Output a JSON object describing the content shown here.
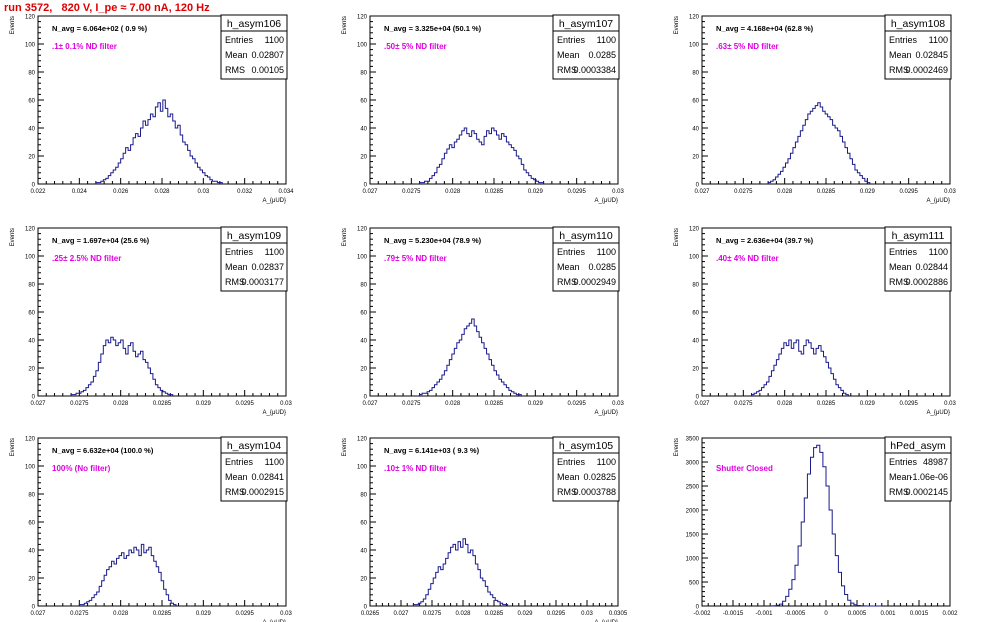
{
  "run_title": "run 3572,   820 V, I_pe ≈ 7.00 nA, 120 Hz",
  "colors": {
    "title": "#e00000",
    "annotation": "#e000e0",
    "histogram": "#1a1a8c",
    "frame": "#000000"
  },
  "chart_data": [
    {
      "type": "histogram",
      "name": "h_asym106",
      "stats": {
        "Entries": "1100",
        "Mean": "0.02807",
        "RMS": "0.00105"
      },
      "navg_label": "N_avg = 6.064e+02 ( 0.9 %)",
      "annotation": ".1± 0.1% ND filter",
      "xlim": [
        0.022,
        0.034
      ],
      "ylim": [
        0,
        120
      ],
      "xticks": [
        0.022,
        0.024,
        0.026,
        0.028,
        0.03,
        0.032,
        0.034
      ],
      "xtick_labels": [
        "0.022",
        "0.024",
        "0.026",
        "0.028",
        "0.03",
        "0.032",
        "0.034"
      ],
      "yticks": [
        0,
        20,
        40,
        60,
        80,
        100,
        120
      ],
      "ytick_labels": [
        "0",
        "20",
        "40",
        "60",
        "80",
        "100",
        "120"
      ],
      "xlabel": "A_{μUD}",
      "ylabel": "Events",
      "bins": {
        "start": 0.0248,
        "width": 0.00012,
        "values": [
          1,
          1,
          2,
          3,
          4,
          6,
          8,
          10,
          12,
          15,
          18,
          22,
          26,
          24,
          28,
          33,
          36,
          34,
          40,
          45,
          42,
          46,
          50,
          48,
          55,
          58,
          52,
          60,
          54,
          48,
          50,
          45,
          40,
          42,
          35,
          30,
          28,
          24,
          20,
          18,
          15,
          12,
          10,
          8,
          6,
          5,
          3,
          2,
          2,
          1,
          1
        ]
      }
    },
    {
      "type": "histogram",
      "name": "h_asym107",
      "stats": {
        "Entries": "1100",
        "Mean": "0.0285",
        "RMS": "0.0003384"
      },
      "navg_label": "N_avg = 3.325e+04 (50.1 %)",
      "annotation": ".50± 5% ND filter",
      "xlim": [
        0.027,
        0.03
      ],
      "ylim": [
        0,
        120
      ],
      "xticks": [
        0.027,
        0.0275,
        0.028,
        0.0285,
        0.029,
        0.0295,
        0.03
      ],
      "xtick_labels": [
        "0.027",
        "0.0275",
        "0.028",
        "0.0285",
        "0.029",
        "0.0295",
        "0.03"
      ],
      "yticks": [
        0,
        20,
        40,
        60,
        80,
        100,
        120
      ],
      "ytick_labels": [
        "0",
        "20",
        "40",
        "60",
        "80",
        "100",
        "120"
      ],
      "xlabel": "A_{μUD}",
      "ylabel": "Events",
      "bins": {
        "start": 0.0276,
        "width": 3e-05,
        "values": [
          1,
          1,
          2,
          2,
          4,
          6,
          8,
          12,
          14,
          18,
          22,
          25,
          28,
          26,
          30,
          32,
          35,
          38,
          40,
          36,
          34,
          38,
          36,
          32,
          30,
          28,
          34,
          38,
          36,
          40,
          38,
          35,
          32,
          36,
          34,
          30,
          28,
          26,
          24,
          20,
          18,
          14,
          10,
          8,
          6,
          4,
          3,
          2,
          1,
          1
        ]
      }
    },
    {
      "type": "histogram",
      "name": "h_asym108",
      "stats": {
        "Entries": "1100",
        "Mean": "0.02845",
        "RMS": "0.0002469"
      },
      "navg_label": "N_avg = 4.168e+04 (62.8 %)",
      "annotation": ".63± 5% ND filter",
      "xlim": [
        0.027,
        0.03
      ],
      "ylim": [
        0,
        120
      ],
      "xticks": [
        0.027,
        0.0275,
        0.028,
        0.0285,
        0.029,
        0.0295,
        0.03
      ],
      "xtick_labels": [
        "0.027",
        "0.0275",
        "0.028",
        "0.0285",
        "0.029",
        "0.0295",
        "0.03"
      ],
      "yticks": [
        0,
        20,
        40,
        60,
        80,
        100,
        120
      ],
      "ytick_labels": [
        "0",
        "20",
        "40",
        "60",
        "80",
        "100",
        "120"
      ],
      "xlabel": "A_{μUD}",
      "ylabel": "Events",
      "bins": {
        "start": 0.0278,
        "width": 3e-05,
        "values": [
          1,
          2,
          3,
          5,
          7,
          9,
          12,
          15,
          18,
          22,
          26,
          30,
          34,
          38,
          42,
          46,
          50,
          52,
          54,
          56,
          58,
          55,
          52,
          50,
          48,
          46,
          42,
          40,
          38,
          34,
          30,
          26,
          22,
          18,
          14,
          10,
          8,
          6,
          4,
          2,
          1
        ]
      }
    },
    {
      "type": "histogram",
      "name": "h_asym109",
      "stats": {
        "Entries": "1100",
        "Mean": "0.02837",
        "RMS": "0.0003177"
      },
      "navg_label": "N_avg = 1.697e+04 (25.6 %)",
      "annotation": ".25± 2.5% ND filter",
      "xlim": [
        0.027,
        0.03
      ],
      "ylim": [
        0,
        120
      ],
      "xticks": [
        0.027,
        0.0275,
        0.028,
        0.0285,
        0.029,
        0.0295,
        0.03
      ],
      "xtick_labels": [
        "0.027",
        "0.0275",
        "0.028",
        "0.0285",
        "0.029",
        "0.0295",
        "0.03"
      ],
      "yticks": [
        0,
        20,
        40,
        60,
        80,
        100,
        120
      ],
      "ytick_labels": [
        "0",
        "20",
        "40",
        "60",
        "80",
        "100",
        "120"
      ],
      "xlabel": "A_{μUD}",
      "ylabel": "Events",
      "bins": {
        "start": 0.0274,
        "width": 3e-05,
        "values": [
          1,
          1,
          2,
          2,
          3,
          4,
          6,
          8,
          10,
          14,
          18,
          24,
          30,
          36,
          40,
          38,
          42,
          40,
          36,
          38,
          40,
          34,
          30,
          36,
          38,
          32,
          28,
          30,
          32,
          26,
          24,
          20,
          16,
          12,
          8,
          6,
          4,
          3,
          2,
          1,
          1
        ]
      }
    },
    {
      "type": "histogram",
      "name": "h_asym110",
      "stats": {
        "Entries": "1100",
        "Mean": "0.0285",
        "RMS": "0.0002949"
      },
      "navg_label": "N_avg = 5.230e+04 (78.9 %)",
      "annotation": ".79± 5% ND filter",
      "xlim": [
        0.027,
        0.03
      ],
      "ylim": [
        0,
        120
      ],
      "xticks": [
        0.027,
        0.0275,
        0.028,
        0.0285,
        0.029,
        0.0295,
        0.03
      ],
      "xtick_labels": [
        "0.027",
        "0.0275",
        "0.028",
        "0.0285",
        "0.029",
        "0.0295",
        "0.03"
      ],
      "yticks": [
        0,
        20,
        40,
        60,
        80,
        100,
        120
      ],
      "ytick_labels": [
        "0",
        "20",
        "40",
        "60",
        "80",
        "100",
        "120"
      ],
      "xlabel": "A_{μUD}",
      "ylabel": "Events",
      "bins": {
        "start": 0.0276,
        "width": 3e-05,
        "values": [
          1,
          2,
          2,
          3,
          4,
          6,
          8,
          10,
          12,
          15,
          18,
          22,
          26,
          30,
          34,
          38,
          40,
          44,
          48,
          50,
          52,
          55,
          50,
          46,
          42,
          38,
          34,
          30,
          26,
          22,
          18,
          15,
          12,
          10,
          8,
          6,
          4,
          3,
          2,
          1,
          1
        ]
      }
    },
    {
      "type": "histogram",
      "name": "h_asym111",
      "stats": {
        "Entries": "1100",
        "Mean": "0.02844",
        "RMS": "0.0002886"
      },
      "navg_label": "N_avg = 2.636e+04 (39.7 %)",
      "annotation": ".40± 4% ND filter",
      "xlim": [
        0.027,
        0.03
      ],
      "ylim": [
        0,
        120
      ],
      "xticks": [
        0.027,
        0.0275,
        0.028,
        0.0285,
        0.029,
        0.0295,
        0.03
      ],
      "xtick_labels": [
        "0.027",
        "0.0275",
        "0.028",
        "0.0285",
        "0.029",
        "0.0295",
        "0.03"
      ],
      "yticks": [
        0,
        20,
        40,
        60,
        80,
        100,
        120
      ],
      "ytick_labels": [
        "0",
        "20",
        "40",
        "60",
        "80",
        "100",
        "120"
      ],
      "xlabel": "A_{μUD}",
      "ylabel": "Events",
      "bins": {
        "start": 0.0276,
        "width": 3e-05,
        "values": [
          1,
          2,
          3,
          4,
          6,
          8,
          10,
          14,
          18,
          22,
          26,
          30,
          34,
          38,
          36,
          40,
          34,
          38,
          40,
          32,
          30,
          36,
          40,
          38,
          34,
          30,
          34,
          36,
          32,
          28,
          24,
          20,
          16,
          12,
          8,
          6,
          4,
          2,
          1
        ]
      }
    },
    {
      "type": "histogram",
      "name": "h_asym104",
      "stats": {
        "Entries": "1100",
        "Mean": "0.02841",
        "RMS": "0.0002915"
      },
      "navg_label": "N_avg = 6.632e+04 (100.0 %)",
      "annotation": "100% (No filter)",
      "xlim": [
        0.027,
        0.03
      ],
      "ylim": [
        0,
        120
      ],
      "xticks": [
        0.027,
        0.0275,
        0.028,
        0.0285,
        0.029,
        0.0295,
        0.03
      ],
      "xtick_labels": [
        "0.027",
        "0.0275",
        "0.028",
        "0.0285",
        "0.029",
        "0.0295",
        "0.03"
      ],
      "yticks": [
        0,
        20,
        40,
        60,
        80,
        100,
        120
      ],
      "ytick_labels": [
        "0",
        "20",
        "40",
        "60",
        "80",
        "100",
        "120"
      ],
      "xlabel": "A_{μUD}",
      "ylabel": "Events",
      "bins": {
        "start": 0.0275,
        "width": 3e-05,
        "values": [
          1,
          1,
          2,
          3,
          4,
          6,
          8,
          10,
          14,
          18,
          22,
          26,
          28,
          32,
          30,
          34,
          36,
          38,
          34,
          36,
          40,
          38,
          42,
          40,
          36,
          44,
          38,
          40,
          42,
          36,
          32,
          28,
          24,
          18,
          12,
          8,
          4,
          2,
          1
        ]
      }
    },
    {
      "type": "histogram",
      "name": "h_asym105",
      "stats": {
        "Entries": "1100",
        "Mean": "0.02825",
        "RMS": "0.0003788"
      },
      "navg_label": "N_avg = 6.141e+03 ( 9.3 %)",
      "annotation": ".10± 1% ND filter",
      "xlim": [
        0.0265,
        0.0305
      ],
      "ylim": [
        0,
        120
      ],
      "xticks": [
        0.0265,
        0.027,
        0.0275,
        0.028,
        0.0285,
        0.029,
        0.0295,
        0.03,
        0.0305
      ],
      "xtick_labels": [
        "0.0265",
        "0.027",
        "0.0275",
        "0.028",
        "0.0285",
        "0.029",
        "0.0295",
        "0.03",
        "0.0305"
      ],
      "yticks": [
        0,
        20,
        40,
        60,
        80,
        100,
        120
      ],
      "ytick_labels": [
        "0",
        "20",
        "40",
        "60",
        "80",
        "100",
        "120"
      ],
      "xlabel": "A_{μUD}",
      "ylabel": "Events",
      "bins": {
        "start": 0.0272,
        "width": 4e-05,
        "values": [
          1,
          1,
          2,
          3,
          5,
          8,
          12,
          16,
          20,
          24,
          28,
          26,
          30,
          34,
          38,
          42,
          44,
          40,
          46,
          42,
          48,
          44,
          38,
          40,
          36,
          30,
          26,
          20,
          18,
          14,
          10,
          8,
          6,
          4,
          3,
          2,
          1,
          1
        ]
      }
    },
    {
      "type": "histogram",
      "name": "hPed_asym",
      "stats": {
        "Entries": "48987",
        "Mean": "-1.06e-06",
        "RMS": "0.0002145"
      },
      "navg_label": "",
      "annotation": "Shutter Closed",
      "xlim": [
        -0.002,
        0.002
      ],
      "ylim": [
        0,
        3500
      ],
      "xticks": [
        -0.002,
        -0.0015,
        -0.001,
        -0.0005,
        0,
        0.0005,
        0.001,
        0.0015,
        0.002
      ],
      "xtick_labels": [
        "-0.002",
        "-0.0015",
        "-0.001",
        "-0.0005",
        "0",
        "0.0005",
        "0.001",
        "0.0015",
        "0.002"
      ],
      "yticks": [
        0,
        500,
        1000,
        1500,
        2000,
        2500,
        3000,
        3500
      ],
      "ytick_labels": [
        "0",
        "500",
        "1000",
        "1500",
        "2000",
        "2500",
        "3000",
        "3500"
      ],
      "xlabel": "",
      "ylabel": "Events",
      "bins": {
        "start": -0.0009,
        "width": 5e-05,
        "values": [
          2,
          5,
          15,
          40,
          100,
          200,
          350,
          550,
          850,
          1250,
          1750,
          2250,
          2750,
          3100,
          3300,
          3350,
          3200,
          2900,
          2500,
          2000,
          1500,
          1050,
          700,
          420,
          240,
          120,
          60,
          25,
          10,
          4,
          2,
          1,
          1,
          1,
          1,
          1
        ]
      }
    }
  ]
}
